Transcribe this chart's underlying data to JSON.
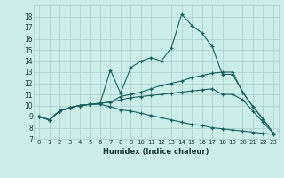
{
  "xlabel": "Humidex (Indice chaleur)",
  "ylabel": "",
  "background_color": "#cceee8",
  "grid_color": "#aacccc",
  "line_color": "#1a6060",
  "xlim": [
    -0.5,
    23.5
  ],
  "ylim": [
    7,
    19
  ],
  "xticks": [
    0,
    1,
    2,
    3,
    4,
    5,
    6,
    7,
    8,
    9,
    10,
    11,
    12,
    13,
    14,
    15,
    16,
    17,
    18,
    19,
    20,
    21,
    22,
    23
  ],
  "yticks": [
    7,
    8,
    9,
    10,
    11,
    12,
    13,
    14,
    15,
    16,
    17,
    18
  ],
  "series": [
    [
      9.0,
      8.7,
      9.5,
      9.8,
      10.0,
      10.1,
      10.2,
      13.2,
      11.1,
      13.4,
      14.0,
      14.3,
      14.0,
      15.2,
      18.2,
      17.2,
      16.5,
      15.3,
      12.8,
      12.8,
      11.2,
      9.9,
      8.8,
      7.5
    ],
    [
      9.0,
      8.7,
      9.5,
      9.8,
      10.0,
      10.1,
      10.2,
      10.3,
      10.8,
      11.0,
      11.2,
      11.5,
      11.8,
      12.0,
      12.2,
      12.5,
      12.7,
      12.9,
      13.0,
      13.0,
      11.2,
      9.9,
      8.8,
      7.5
    ],
    [
      9.0,
      8.7,
      9.5,
      9.8,
      10.0,
      10.1,
      10.1,
      9.9,
      9.6,
      9.5,
      9.3,
      9.1,
      8.9,
      8.7,
      8.5,
      8.3,
      8.2,
      8.0,
      7.9,
      7.8,
      7.7,
      7.6,
      7.5,
      7.4
    ],
    [
      9.0,
      8.7,
      9.5,
      9.8,
      10.0,
      10.1,
      10.2,
      10.3,
      10.5,
      10.7,
      10.8,
      10.9,
      11.0,
      11.1,
      11.2,
      11.3,
      11.4,
      11.5,
      11.0,
      11.0,
      10.5,
      9.5,
      8.5,
      7.5
    ]
  ]
}
